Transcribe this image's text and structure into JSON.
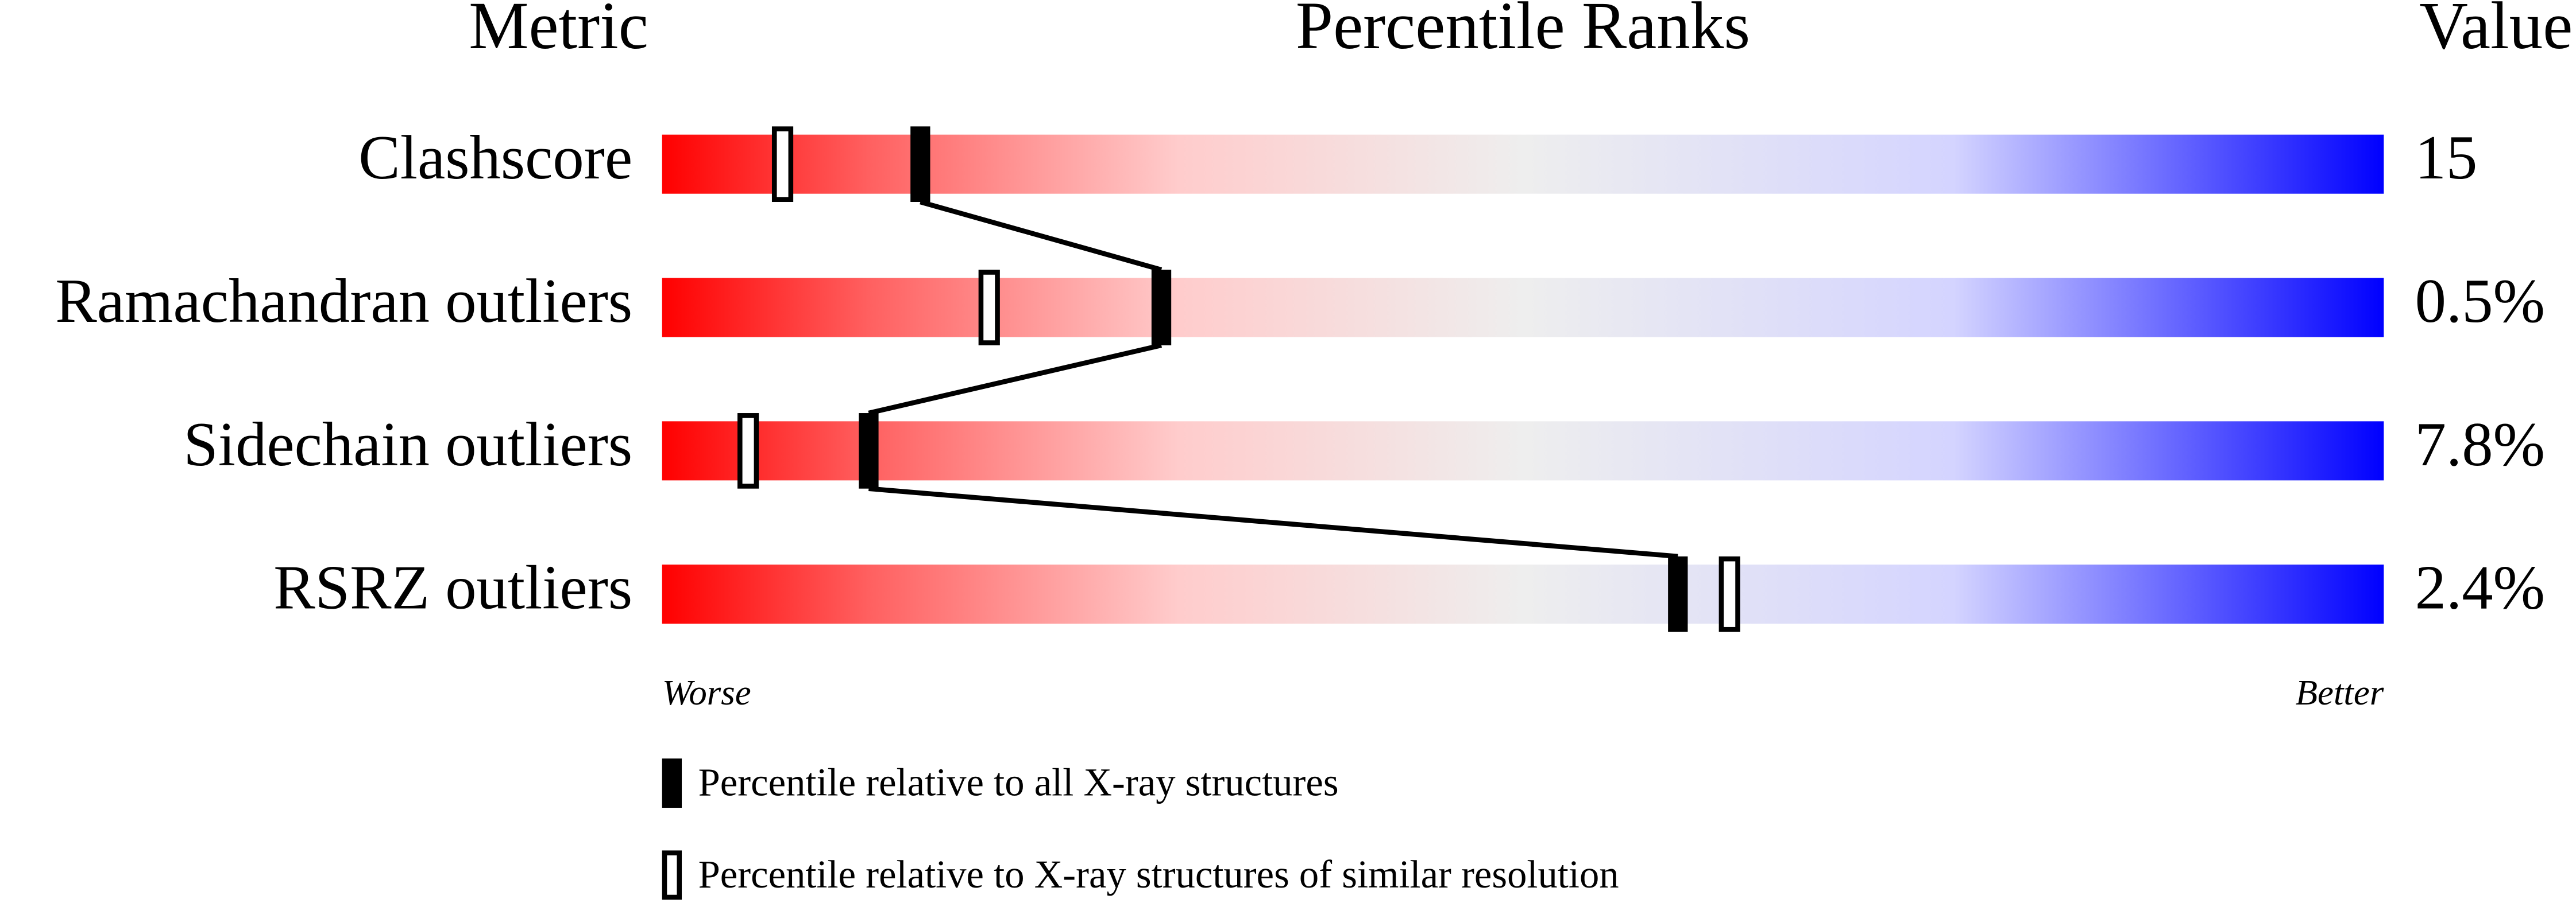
{
  "chart_data": {
    "type": "percentile_slider",
    "title": "Percentile Ranks",
    "metric_header": "Metric",
    "value_header": "Value",
    "categories": [
      "Clashscore",
      "Ramachandran outliers",
      "Sidechain outliers",
      "RSRZ outliers"
    ],
    "values": [
      15,
      0.5,
      7.8,
      2.4
    ],
    "value_labels": [
      "15",
      "0.5%",
      "7.8%",
      "2.4%"
    ],
    "xlim": [
      0,
      100
    ],
    "x_low_label": "Worse",
    "x_high_label": "Better",
    "series": [
      {
        "name": "Percentile relative to all X-ray structures",
        "color": "#000000",
        "marker": "filled",
        "values": [
          15,
          29,
          12,
          59
        ]
      },
      {
        "name": "Percentile relative to X-ray structures of similar resolution",
        "color": "#000000",
        "marker": "open",
        "values": [
          7,
          19,
          5,
          62
        ]
      }
    ]
  }
}
